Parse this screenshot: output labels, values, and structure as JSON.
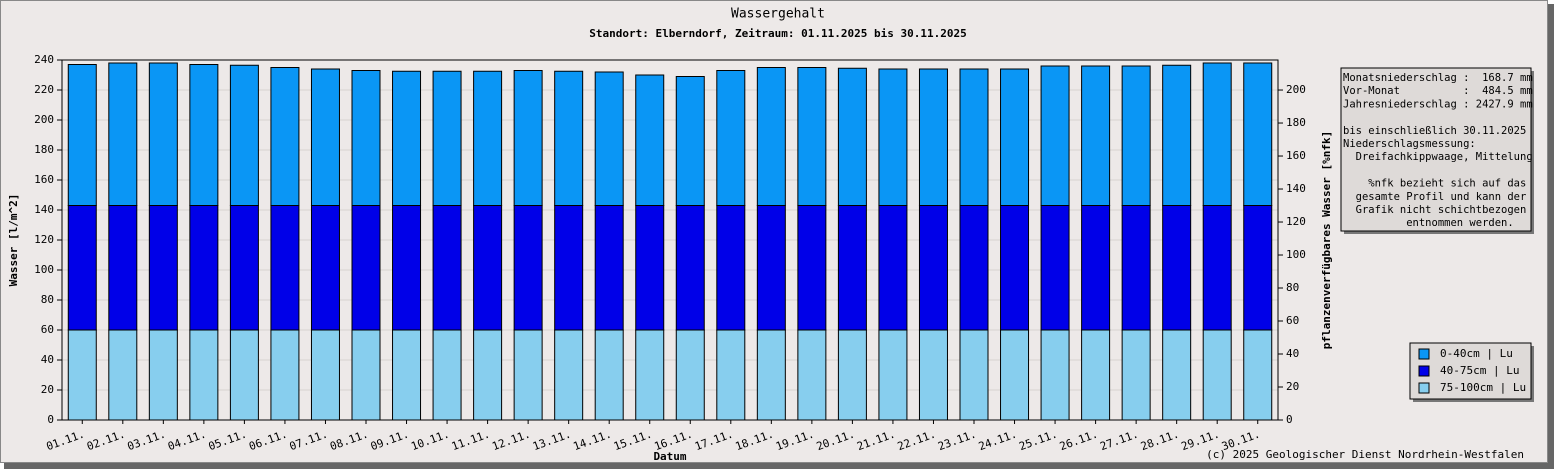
{
  "chart_data": {
    "type": "bar",
    "stacked": true,
    "title": "Wassergehalt",
    "subtitle": "Standort: Elberndorf, Zeitraum: 01.11.2025 bis 30.11.2025",
    "xlabel": "Datum",
    "ylabel": "Wasser [l/m^2]",
    "y2label": "pflanzenverfügbares Wasser [%nfk]",
    "footer": "(c) 2025 Geologischer Dienst Nordrhein-Westfalen",
    "categories": [
      "01.11.",
      "02.11.",
      "03.11.",
      "04.11.",
      "05.11.",
      "06.11.",
      "07.11.",
      "08.11.",
      "09.11.",
      "10.11.",
      "11.11.",
      "12.11.",
      "13.11.",
      "14.11.",
      "15.11.",
      "16.11.",
      "17.11.",
      "18.11.",
      "19.11.",
      "20.11.",
      "21.11.",
      "22.11.",
      "23.11.",
      "24.11.",
      "25.11.",
      "26.11.",
      "27.11.",
      "28.11.",
      "29.11.",
      "30.11."
    ],
    "series": [
      {
        "name": "0-40cm | Lu",
        "color": "#0a96f5",
        "values": [
          94,
          95,
          95,
          94,
          93.5,
          92,
          91,
          90,
          89.5,
          89.5,
          89.5,
          90,
          89.5,
          89,
          87,
          86,
          90,
          92,
          92,
          91.5,
          91,
          91,
          91,
          91,
          93,
          93,
          93,
          93.5,
          95,
          95
        ]
      },
      {
        "name": "40-75cm | Lu",
        "color": "#0000e8",
        "values": [
          83,
          83,
          83,
          83,
          83,
          83,
          83,
          83,
          83,
          83,
          83,
          83,
          83,
          83,
          83,
          83,
          83,
          83,
          83,
          83,
          83,
          83,
          83,
          83,
          83,
          83,
          83,
          83,
          83,
          83
        ]
      },
      {
        "name": "75-100cm | Lu",
        "color": "#87ceee",
        "values": [
          60,
          60,
          60,
          60,
          60,
          60,
          60,
          60,
          60,
          60,
          60,
          60,
          60,
          60,
          60,
          60,
          60,
          60,
          60,
          60,
          60,
          60,
          60,
          60,
          60,
          60,
          60,
          60,
          60,
          60
        ]
      }
    ],
    "ylim": [
      0,
      240
    ],
    "yticks": [
      0,
      20,
      40,
      60,
      80,
      100,
      120,
      140,
      160,
      180,
      200,
      220,
      240
    ],
    "y2lim": [
      0,
      218.2
    ],
    "y2ticks": [
      0,
      20,
      40,
      60,
      80,
      100,
      120,
      140,
      160,
      180,
      200
    ],
    "grid": true,
    "legend": "lower right",
    "annotations": [
      "Monatsniederschlag :  168.7 mm",
      "Vor-Monat          :  484.5 mm",
      "Jahresniederschlag : 2427.9 mm",
      "",
      "bis einschließlich 30.11.2025",
      "Niederschlagsmessung:",
      "  Dreifachkippwaage, Mittelung",
      "",
      "    %nfk bezieht sich auf das",
      "  gesamte Profil und kann der",
      "  Grafik nicht schichtbezogen",
      "          entnommen werden."
    ]
  }
}
